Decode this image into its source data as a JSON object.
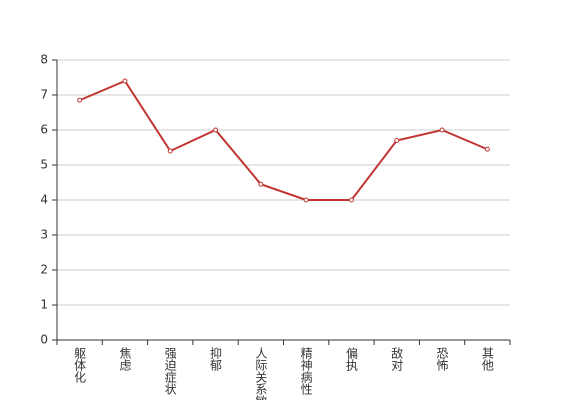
{
  "chart_data": {
    "type": "line",
    "categories": [
      "躯体化",
      "焦虑",
      "强迫症状",
      "抑郁",
      "人际关系敏感",
      "精神病性",
      "偏执",
      "敌对",
      "恐怖",
      "其他"
    ],
    "series": [
      {
        "color": "#c23531",
        "values": [
          6.85,
          7.4,
          5.4,
          6.0,
          4.45,
          4.0,
          4.0,
          5.7,
          6.0,
          5.45
        ]
      }
    ],
    "ylim": [
      0,
      8
    ],
    "yticks": [
      0,
      1,
      2,
      3,
      4,
      5,
      6,
      7,
      8
    ],
    "grid": true
  }
}
